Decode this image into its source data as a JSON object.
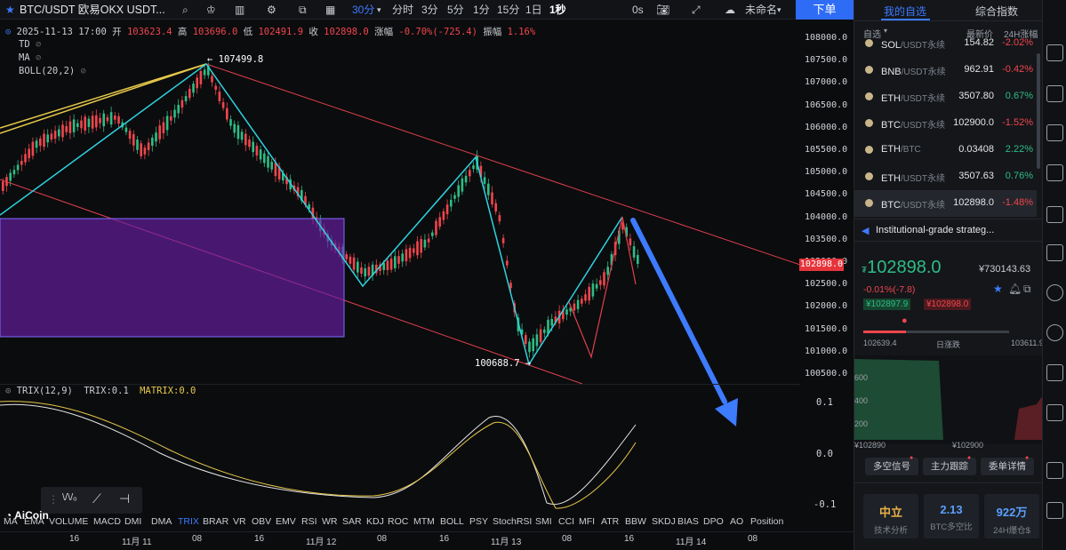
{
  "toolbar": {
    "symbol": "BTC/USDT 欧易OKX USDT...",
    "timeframes": [
      "30分",
      "分时",
      "3分",
      "5分",
      "1分",
      "15分",
      "1日",
      "1秒"
    ],
    "active_timeframe": "30分",
    "zero_seconds": "0s",
    "cloud_label": "未命名",
    "order_button": "下单"
  },
  "ohlc": {
    "datetime": "2025-11-13 17:00",
    "open_label": "开",
    "open": "103623.4",
    "high_label": "高",
    "high": "103696.0",
    "low_label": "低",
    "low": "102491.9",
    "close_label": "收",
    "close": "102898.0",
    "change_label": "涨幅",
    "change": "-0.70%(-725.4)",
    "amp_label": "振幅",
    "amp": "1.16%"
  },
  "overlays": [
    "TD",
    "MA",
    "BOLL(20,2)"
  ],
  "price_axis": [
    "108000.0",
    "107500.0",
    "107000.0",
    "106500.0",
    "106000.0",
    "105500.0",
    "105000.0",
    "104500.0",
    "104000.0",
    "103500.0",
    "103000.0",
    "102500.0",
    "102000.0",
    "101500.0",
    "101000.0",
    "100500.0"
  ],
  "current_price_tag": "102898.0",
  "annotations": {
    "high": "107499.8",
    "low": "100688.7"
  },
  "trix": {
    "label": "TRIX(12,9)",
    "value": "TRIX:0.1",
    "matrix": "MATRIX:0.0",
    "axis": [
      "0.1",
      "0.0",
      "-0.1"
    ]
  },
  "brand": "AiCoin",
  "indicators": [
    "MA",
    "EMA",
    "VOLUME",
    "MACD",
    "DMI",
    "DMA",
    "TRIX",
    "BRAR",
    "VR",
    "OBV",
    "EMV",
    "RSI",
    "WR",
    "SAR",
    "KDJ",
    "ROC",
    "MTM",
    "BOLL",
    "PSY",
    "StochRSI",
    "SMI",
    "CCI",
    "MFI",
    "ATR",
    "BBW",
    "SKDJ",
    "BIAS",
    "DPO",
    "AO",
    "Position"
  ],
  "active_indicator": "TRIX",
  "time_axis": [
    "16",
    "11月 11",
    "08",
    "16",
    "11月 12",
    "08",
    "16",
    "11月 13",
    "08",
    "16",
    "11月 14",
    "08"
  ],
  "panel": {
    "tabs": [
      "我的自选",
      "综合指数"
    ],
    "header": {
      "group": "自选",
      "latest": "最新价",
      "change": "24H涨幅"
    },
    "watchlist": [
      {
        "sym": "SOL",
        "quote": "/USDT永续",
        "price": "154.82",
        "change": "-2.02%",
        "dir": "dn"
      },
      {
        "sym": "BNB",
        "quote": "/USDT永续",
        "price": "962.91",
        "change": "-0.42%",
        "dir": "dn"
      },
      {
        "sym": "ETH",
        "quote": "/USDT永续",
        "price": "3507.80",
        "change": "0.67%",
        "dir": "up"
      },
      {
        "sym": "BTC",
        "quote": "/USDT永续",
        "price": "102900.0",
        "change": "-1.52%",
        "dir": "dn"
      },
      {
        "sym": "ETH",
        "quote": "/BTC",
        "price": "0.03408",
        "change": "2.22%",
        "dir": "up"
      },
      {
        "sym": "ETH",
        "quote": "/USDT永续",
        "price": "3507.63",
        "change": "0.76%",
        "dir": "up"
      },
      {
        "sym": "BTC",
        "quote": "/USDT永续",
        "price": "102898.0",
        "change": "-1.48%",
        "dir": "dn"
      }
    ],
    "news": "Institutional-grade strateg...",
    "big_price": "102898.0",
    "cny_price": "¥730143.63",
    "big_change": "-0.01%(-7.8)",
    "bid": "¥102897.9",
    "ask": "¥102898.0",
    "range_low": "102639.4",
    "range_label": "日涨跌",
    "range_high": "103611.9",
    "depth_y": [
      "600",
      "400",
      "200"
    ],
    "depth_x_left": "¥102890",
    "depth_x_right": "¥102900",
    "buttons": [
      "多空信号",
      "主力跟踪",
      "委单详情"
    ],
    "stats": [
      {
        "value": "中立",
        "label": "技术分析",
        "color": "#e8b04a"
      },
      {
        "value": "2.13",
        "label": "BTC多空比",
        "color": "#5aa0ff"
      },
      {
        "value": "922万",
        "label": "24H爆仓$",
        "color": "#5aa0ff"
      }
    ]
  },
  "colors": {
    "up": "#2ebd85",
    "down": "#f0464d",
    "accent": "#3d7bff",
    "zigzag": "#2fd3e0",
    "rect": "#6a1fa8",
    "arrow": "#3d7bff"
  }
}
